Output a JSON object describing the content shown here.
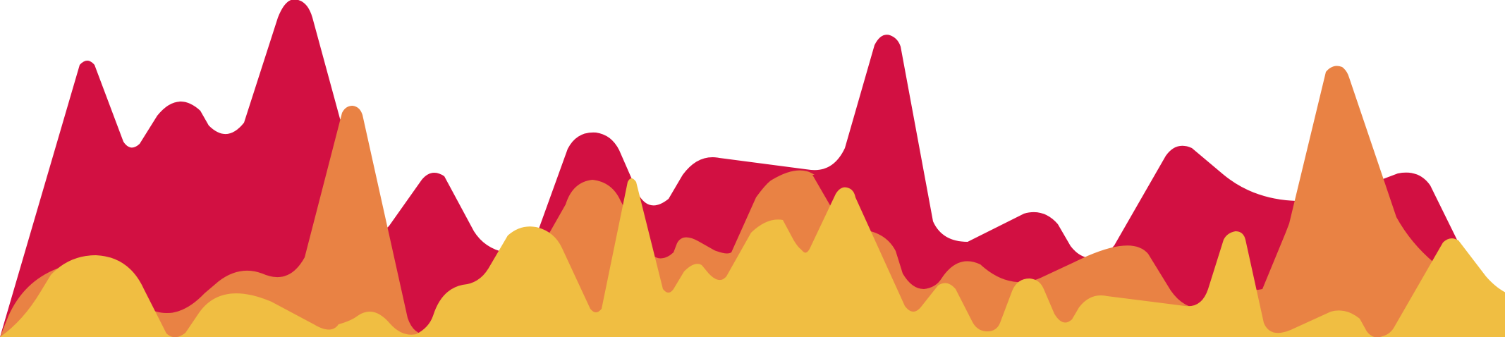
{
  "graphic": {
    "kind": "decorative layered wave banner",
    "layers": [
      {
        "name": "back-wave",
        "color": "#d21042"
      },
      {
        "name": "middle-wave",
        "color": "#e98244"
      },
      {
        "name": "front-wave",
        "color": "#f0be42"
      }
    ]
  }
}
